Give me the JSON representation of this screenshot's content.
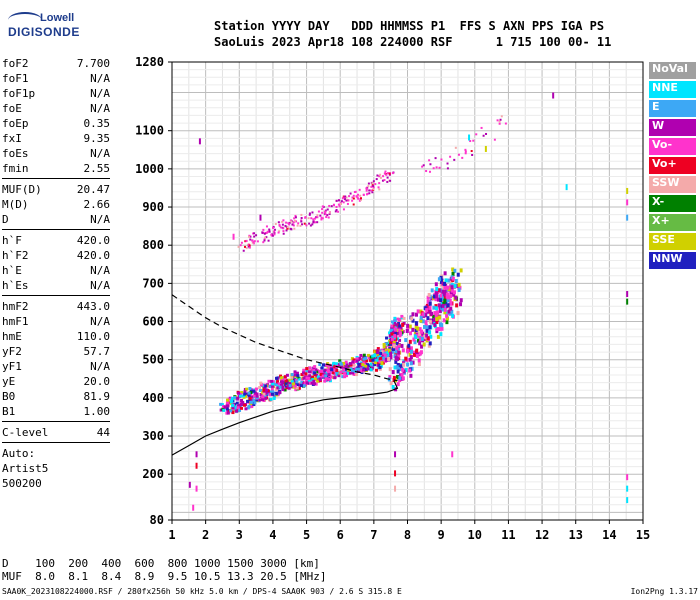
{
  "logo": {
    "line1": "Lowell",
    "line2": "DIGISONDE"
  },
  "header": {
    "line1": "Station YYYY DAY   DDD HHMMSS P1  FFS S AXN PPS IGA PS",
    "line2": "SaoLuis 2023 Apr18 108 224000 RSF      1 715 100 00- 11"
  },
  "params": {
    "g1": [
      {
        "label": "foF2",
        "value": "7.700"
      },
      {
        "label": "foF1",
        "value": "N/A"
      },
      {
        "label": "foF1p",
        "value": "N/A"
      },
      {
        "label": "foE",
        "value": "N/A"
      },
      {
        "label": "foEp",
        "value": "0.35"
      },
      {
        "label": "fxI",
        "value": "9.35"
      },
      {
        "label": "foEs",
        "value": "N/A"
      },
      {
        "label": "fmin",
        "value": "2.55"
      }
    ],
    "g2": [
      {
        "label": "MUF(D)",
        "value": "20.47"
      },
      {
        "label": "M(D)",
        "value": "2.66"
      },
      {
        "label": "D",
        "value": "N/A"
      }
    ],
    "g3": [
      {
        "label": "h`F",
        "value": "420.0"
      },
      {
        "label": "h`F2",
        "value": "420.0"
      },
      {
        "label": "h`E",
        "value": "N/A"
      },
      {
        "label": "h`Es",
        "value": "N/A"
      }
    ],
    "g4": [
      {
        "label": "hmF2",
        "value": "443.0"
      },
      {
        "label": "hmF1",
        "value": "N/A"
      },
      {
        "label": "hmE",
        "value": "110.0"
      },
      {
        "label": "yF2",
        "value": "57.7"
      },
      {
        "label": "yF1",
        "value": "N/A"
      },
      {
        "label": "yE",
        "value": "20.0"
      },
      {
        "label": "B0",
        "value": "81.9"
      },
      {
        "label": "B1",
        "value": "1.00"
      }
    ],
    "g5": [
      {
        "label": "C-level",
        "value": "44"
      }
    ],
    "auto": [
      "Auto:",
      "Artist5",
      "500200"
    ]
  },
  "legend": [
    {
      "label": "NoVal",
      "color": "#a0a0a0"
    },
    {
      "label": "NNE",
      "color": "#00e5ff"
    },
    {
      "label": "E",
      "color": "#3da8f5"
    },
    {
      "label": "W",
      "color": "#b000b0"
    },
    {
      "label": "Vo-",
      "color": "#ff33cc"
    },
    {
      "label": "Vo+",
      "color": "#ee0022"
    },
    {
      "label": "SSW",
      "color": "#f4aaaa"
    },
    {
      "label": "X-",
      "color": "#008000"
    },
    {
      "label": "X+",
      "color": "#66bb44"
    },
    {
      "label": "SSE",
      "color": "#d0d000"
    },
    {
      "label": "NNW",
      "color": "#2020c0"
    }
  ],
  "muf_table": {
    "row1": "D    100  200  400  600  800 1000 1500 3000 [km]",
    "row2": "MUF  8.0  8.1  8.4  8.9  9.5 10.5 13.3 20.5 [MHz]"
  },
  "footer": {
    "left": "SAA0K_2023108224000.RSF / 280fx256h 50 kHz 5.0 km / DPS-4 SAA0K 903 / 2.6 S 315.8 E",
    "right": "Ion2Png 1.3.17"
  },
  "chart_data": {
    "type": "scatter",
    "xlim": [
      1,
      15
    ],
    "ylim": [
      80,
      1280
    ],
    "x_ticks": [
      1,
      2,
      3,
      4,
      5,
      6,
      7,
      8,
      9,
      10,
      11,
      12,
      13,
      14,
      15
    ],
    "y_ticks": [
      80,
      200,
      300,
      400,
      500,
      600,
      700,
      800,
      900,
      1000,
      1100,
      1280
    ],
    "grid": true,
    "legend_position": "right",
    "traces": {
      "o_mode": {
        "x": [
          2.55,
          3,
          3.5,
          4,
          4.5,
          5,
          5.5,
          6,
          6.5,
          7,
          7.3,
          7.6,
          7.7
        ],
        "y": [
          380,
          395,
          410,
          430,
          445,
          460,
          470,
          480,
          490,
          500,
          520,
          560,
          600
        ]
      },
      "f2_high": {
        "x": [
          7.4,
          7.8,
          8.2,
          8.5,
          8.8,
          9.0,
          9.2,
          9.35
        ],
        "y": [
          470,
          510,
          560,
          600,
          630,
          650,
          680,
          700
        ]
      },
      "second_hop": {
        "x": [
          3,
          3.5,
          4,
          4.5,
          5,
          5.5,
          6,
          6.5,
          7,
          7.5
        ],
        "y": [
          800,
          820,
          840,
          855,
          870,
          890,
          910,
          935,
          960,
          990
        ]
      },
      "upper_scatter": {
        "x": [
          8.3,
          8.8,
          9.2,
          9.6,
          10,
          10.4,
          10.8
        ],
        "y": [
          990,
          1010,
          1030,
          1050,
          1080,
          1100,
          1130
        ]
      },
      "profile_solid": {
        "x": [
          1,
          1.5,
          2,
          2.5,
          3,
          3.5,
          4,
          4.5,
          5,
          5.5,
          6,
          6.5,
          7,
          7.4,
          7.7,
          7.6
        ],
        "y": [
          250,
          275,
          300,
          318,
          335,
          350,
          365,
          375,
          385,
          395,
          400,
          405,
          410,
          415,
          425,
          445
        ]
      },
      "profile_dashed": {
        "x": [
          1,
          1.5,
          2,
          2.5,
          3,
          3.5,
          4,
          4.5,
          5,
          5.5,
          6,
          6.5,
          7,
          7.4,
          7.7
        ],
        "y": [
          670,
          640,
          610,
          585,
          565,
          545,
          530,
          515,
          500,
          490,
          480,
          468,
          460,
          450,
          445
        ]
      }
    }
  }
}
